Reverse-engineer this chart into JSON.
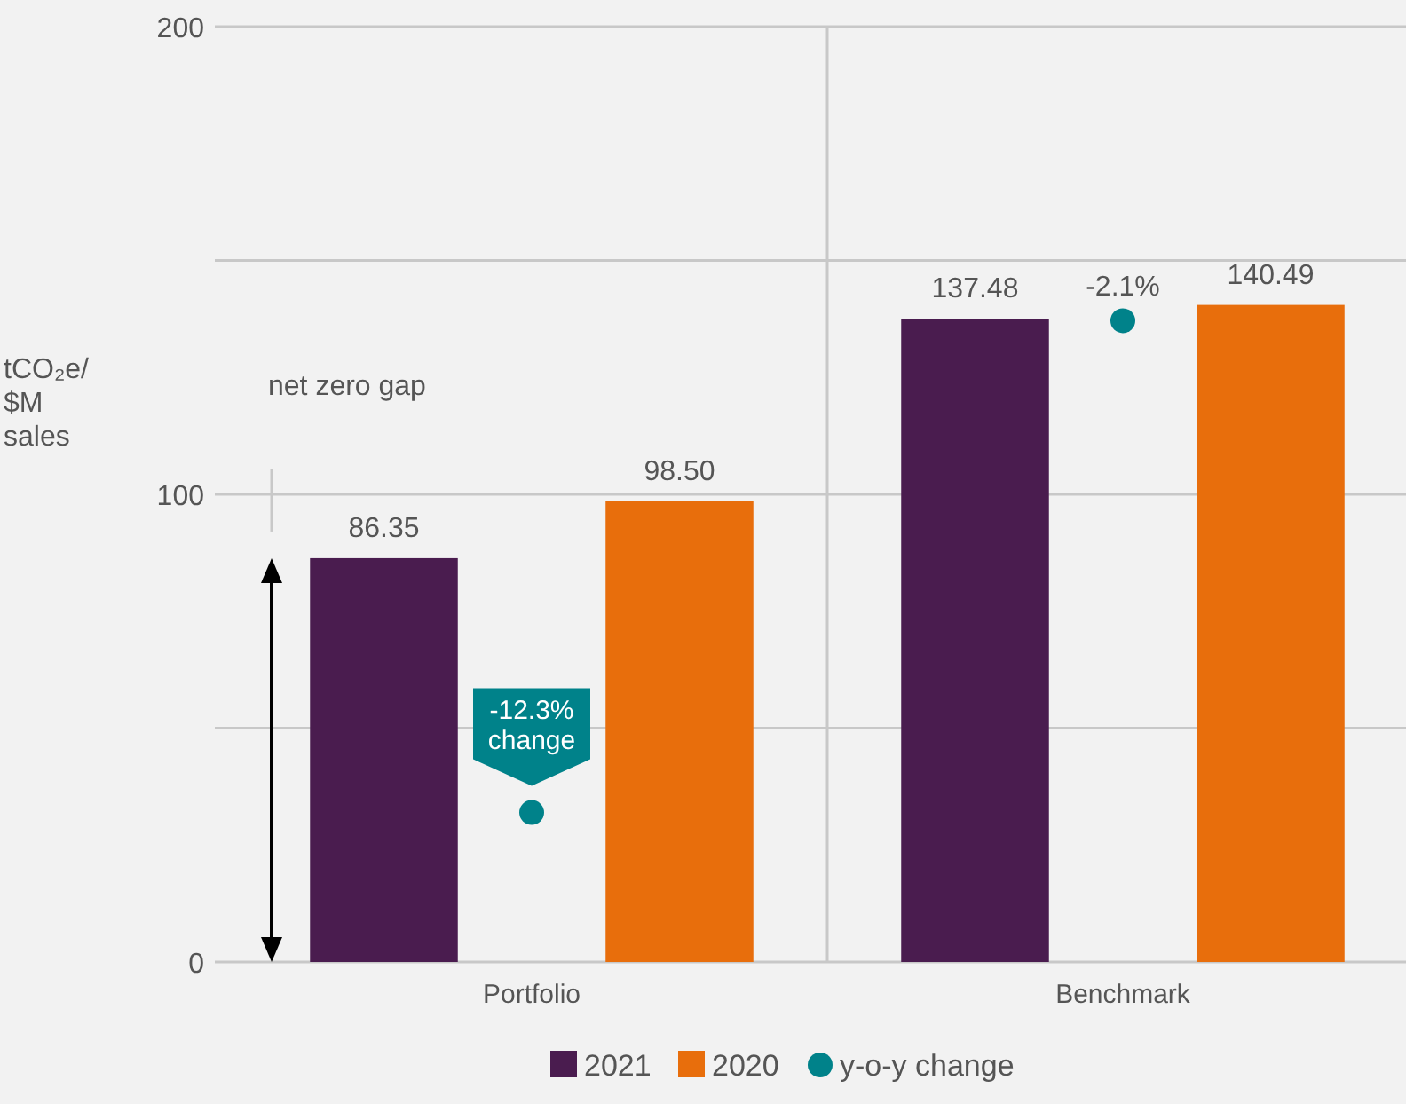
{
  "chart_data": {
    "type": "bar",
    "ylabel": "tCO₂e/ $M sales",
    "categories": [
      "Portfolio",
      "Benchmark"
    ],
    "series": [
      {
        "name": "2021",
        "color": "#4a1c4f",
        "values": [
          86.35,
          137.48
        ]
      },
      {
        "name": "2020",
        "color": "#e86e0c",
        "values": [
          98.5,
          140.49
        ],
        "value_labels": [
          "98.50",
          "140.49"
        ]
      },
      {
        "name": "y-o-y change",
        "type": "scatter",
        "axis": "y2",
        "color": "#00828a",
        "x": [
          "Portfolio",
          "Benchmark"
        ],
        "values": [
          -12.3,
          -2.1
        ],
        "value_labels": [
          "-12.3% change",
          "-2.1%"
        ]
      }
    ],
    "y2lim": [
      -15.4,
      4
    ],
    "data_labels": true,
    "ylim": [
      0,
      200
    ],
    "yticks": [
      0,
      {
        "value": 50,
        "label": null
      },
      100,
      {
        "value": 150,
        "label": null
      },
      200
    ],
    "grid": true,
    "legend": "bottom",
    "marker": "circle",
    "annotations": [
      "net zero gap"
    ]
  }
}
